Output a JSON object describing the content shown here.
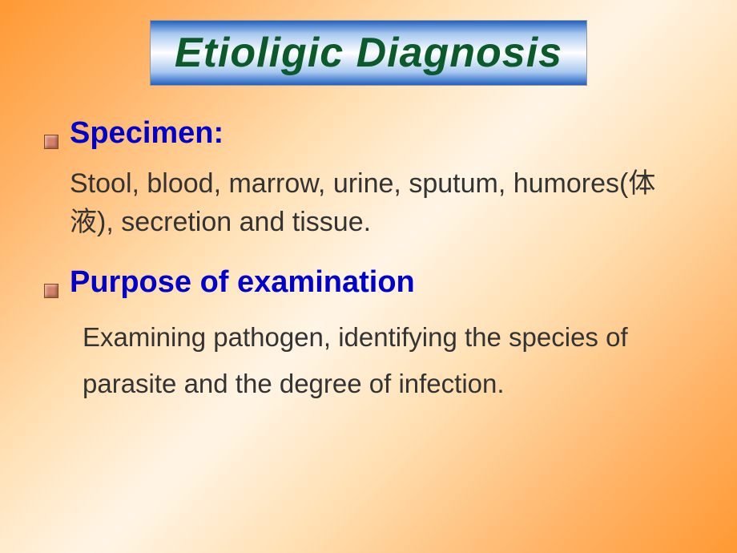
{
  "title": "Etioligic  Diagnosis",
  "specimen": {
    "heading": "Specimen:",
    "body": "Stool, blood, marrow, urine, sputum, humores(体液), secretion and tissue."
  },
  "purpose": {
    "heading": "Purpose of examination",
    "body": "Examining pathogen, identifying the species of parasite and the degree of infection."
  },
  "colors": {
    "title_text": "#0a5a2a",
    "heading_text": "#0000cc",
    "body_text": "#333333",
    "bg_gradient_start": "#ff9933",
    "bg_gradient_mid": "#fff5e6"
  },
  "fonts": {
    "title_size_pt": 39,
    "heading_size_pt": 28,
    "body_size_pt": 25
  }
}
